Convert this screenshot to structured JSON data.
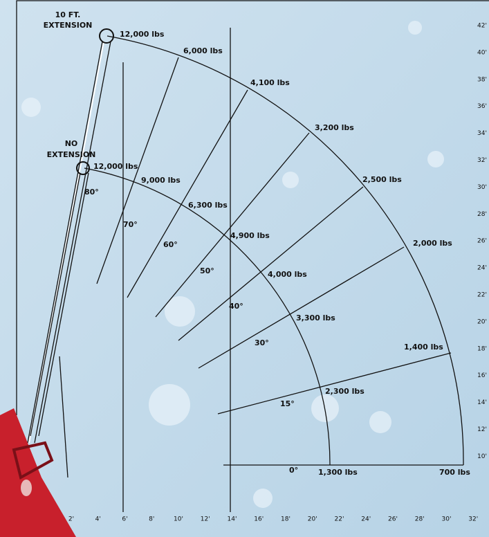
{
  "extension_10ft": [
    "10 FT.",
    "EXTENSION"
  ],
  "no_extension": [
    "NO",
    "EXTENSION"
  ],
  "outer_arc_loads": [
    "12,000 lbs",
    "6,000 lbs",
    "4,100 lbs",
    "3,200 lbs",
    "2,500 lbs",
    "2,000 lbs",
    "1,400 lbs",
    "700 lbs"
  ],
  "inner_arc_loads": [
    "12,000 lbs",
    "9,000 lbs",
    "6,300 lbs",
    "4,900 lbs",
    "4,000 lbs",
    "3,300 lbs",
    "2,300 lbs",
    "1,300 lbs"
  ],
  "angles": [
    "80°",
    "70°",
    "60°",
    "50°",
    "40°",
    "30°",
    "15°",
    "0°"
  ],
  "x_axis": [
    "2'",
    "4'",
    "6'",
    "8'",
    "10'",
    "12'",
    "14'",
    "16'",
    "18'",
    "20'",
    "22'",
    "24'",
    "26'",
    "28'",
    "30'",
    "32'"
  ],
  "y_axis": [
    "42'",
    "40'",
    "38'",
    "36'",
    "34'",
    "32'",
    "30'",
    "28'",
    "26'",
    "24'",
    "22'",
    "20'",
    "18'",
    "16'",
    "14'",
    "12'",
    "10'"
  ]
}
